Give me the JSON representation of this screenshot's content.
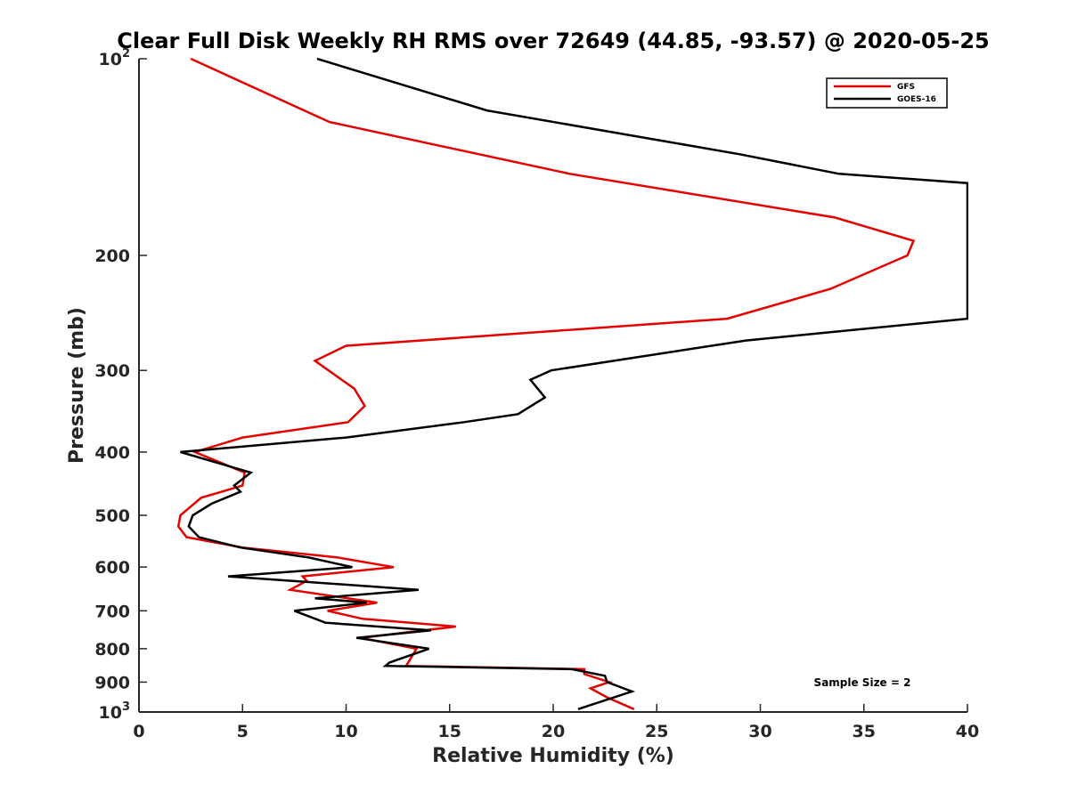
{
  "chart_data": {
    "type": "line",
    "title": "Clear Full Disk Weekly RH RMS over 72649 (44.85, -93.57) @ 2020-05-25",
    "xlabel": "Relative Humidity (%)",
    "ylabel": "Pressure (mb)",
    "xlim": [
      0,
      40
    ],
    "ylim": [
      100,
      1000
    ],
    "y_scale": "log",
    "y_reversed": true,
    "grid": false,
    "legend_position": "top-right",
    "x_ticks": [
      0,
      5,
      10,
      15,
      20,
      25,
      30,
      35,
      40
    ],
    "x_tick_labels": [
      "0",
      "5",
      "10",
      "15",
      "20",
      "25",
      "30",
      "35",
      "40"
    ],
    "y_ticks": [
      100,
      200,
      300,
      400,
      500,
      600,
      700,
      800,
      900,
      1000
    ],
    "y_tick_labels": [
      {
        "base": "10",
        "exp": "2"
      },
      {
        "base": "200",
        "exp": ""
      },
      {
        "base": "300",
        "exp": ""
      },
      {
        "base": "400",
        "exp": ""
      },
      {
        "base": "500",
        "exp": ""
      },
      {
        "base": "600",
        "exp": ""
      },
      {
        "base": "700",
        "exp": ""
      },
      {
        "base": "800",
        "exp": ""
      },
      {
        "base": "900",
        "exp": ""
      },
      {
        "base": "10",
        "exp": "3"
      }
    ],
    "annotation": "Sample Size = 2",
    "series": [
      {
        "name": "GFS",
        "color": "#e60000",
        "points": [
          [
            2.5,
            100
          ],
          [
            9.2,
            125
          ],
          [
            20.8,
            150
          ],
          [
            33.6,
            175
          ],
          [
            37.4,
            190
          ],
          [
            37.1,
            200
          ],
          [
            33.4,
            225
          ],
          [
            28.4,
            250
          ],
          [
            10.0,
            275
          ],
          [
            8.5,
            290
          ],
          [
            10.4,
            320
          ],
          [
            10.9,
            340
          ],
          [
            10.1,
            360
          ],
          [
            5.0,
            380
          ],
          [
            2.7,
            400
          ],
          [
            5.1,
            430
          ],
          [
            5.0,
            450
          ],
          [
            3.0,
            470
          ],
          [
            2.0,
            500
          ],
          [
            1.9,
            520
          ],
          [
            2.3,
            540
          ],
          [
            5.0,
            560
          ],
          [
            9.6,
            580
          ],
          [
            12.3,
            600
          ],
          [
            7.9,
            620
          ],
          [
            8.1,
            630
          ],
          [
            7.3,
            650
          ],
          [
            11.5,
            680
          ],
          [
            9.1,
            700
          ],
          [
            10.8,
            720
          ],
          [
            15.3,
            740
          ],
          [
            10.7,
            770
          ],
          [
            13.4,
            800
          ],
          [
            12.9,
            850
          ],
          [
            21.5,
            860
          ],
          [
            21.5,
            875
          ],
          [
            22.7,
            900
          ],
          [
            21.8,
            920
          ],
          [
            22.6,
            950
          ],
          [
            23.9,
            990
          ]
        ]
      },
      {
        "name": "GOES-16",
        "color": "#000000",
        "points": [
          [
            8.6,
            100
          ],
          [
            16.8,
            120
          ],
          [
            29.0,
            140
          ],
          [
            33.8,
            150
          ],
          [
            40.0,
            155
          ],
          [
            40.0,
            250
          ],
          [
            29.3,
            270
          ],
          [
            19.9,
            300
          ],
          [
            18.9,
            310
          ],
          [
            19.6,
            330
          ],
          [
            18.3,
            350
          ],
          [
            15.7,
            360
          ],
          [
            10.0,
            380
          ],
          [
            2.0,
            400
          ],
          [
            5.4,
            430
          ],
          [
            4.6,
            450
          ],
          [
            4.9,
            460
          ],
          [
            3.5,
            480
          ],
          [
            2.6,
            500
          ],
          [
            2.4,
            520
          ],
          [
            2.9,
            540
          ],
          [
            4.9,
            560
          ],
          [
            8.2,
            580
          ],
          [
            10.3,
            600
          ],
          [
            4.3,
            620
          ],
          [
            13.5,
            650
          ],
          [
            8.5,
            670
          ],
          [
            11.0,
            680
          ],
          [
            7.5,
            700
          ],
          [
            9.0,
            730
          ],
          [
            14.1,
            750
          ],
          [
            10.5,
            770
          ],
          [
            14.0,
            800
          ],
          [
            12.1,
            840
          ],
          [
            11.9,
            850
          ],
          [
            20.9,
            860
          ],
          [
            22.5,
            880
          ],
          [
            22.6,
            900
          ],
          [
            23.8,
            930
          ],
          [
            21.2,
            990
          ]
        ]
      }
    ]
  }
}
